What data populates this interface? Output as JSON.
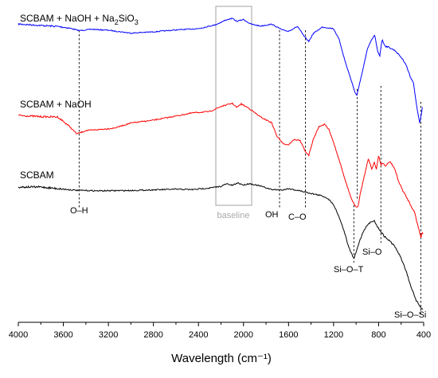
{
  "chart_data": {
    "type": "line",
    "xlabel": "Wavelength (cm⁻¹)",
    "ylabel": "",
    "xlim": [
      4000,
      400
    ],
    "x_reversed": true,
    "x_ticks": [
      "4000",
      "3600",
      "3200",
      "2800",
      "2400",
      "2000",
      "1600",
      "1200",
      "800",
      "400"
    ],
    "x_tick_values": [
      4000,
      3600,
      3200,
      2800,
      2400,
      2000,
      1600,
      1200,
      800,
      400
    ],
    "y_axis_shown": false,
    "grid": false,
    "legend": "none",
    "series": [
      {
        "name": "SCBAM + NaOH + Na₂SiO₃",
        "color": "#0000ff",
        "noise": 1.2,
        "points": [
          [
            4000,
            0.55
          ],
          [
            3800,
            1.0
          ],
          [
            3650,
            1.3
          ],
          [
            3550,
            1.8
          ],
          [
            3460,
            2.6
          ],
          [
            3350,
            2.2
          ],
          [
            3200,
            2.5
          ],
          [
            3000,
            3.4
          ],
          [
            2800,
            3.0
          ],
          [
            2600,
            2.4
          ],
          [
            2400,
            2.0
          ],
          [
            2250,
            0.8
          ],
          [
            2150,
            -0.8
          ],
          [
            2100,
            -1.2
          ],
          [
            2060,
            -0.3
          ],
          [
            2000,
            -0.9
          ],
          [
            1940,
            0.5
          ],
          [
            1850,
            1.2
          ],
          [
            1750,
            0.6
          ],
          [
            1650,
            2.5
          ],
          [
            1600,
            2.8
          ],
          [
            1520,
            1.3
          ],
          [
            1460,
            4.5
          ],
          [
            1420,
            6.0
          ],
          [
            1380,
            3.5
          ],
          [
            1300,
            1.5
          ],
          [
            1200,
            2.0
          ],
          [
            1150,
            5.5
          ],
          [
            1100,
            12.0
          ],
          [
            1050,
            17.5
          ],
          [
            1010,
            22.0
          ],
          [
            995,
            23.0
          ],
          [
            960,
            18.0
          ],
          [
            900,
            8.5
          ],
          [
            870,
            6.0
          ],
          [
            835,
            4.0
          ],
          [
            810,
            9.0
          ],
          [
            790,
            10.5
          ],
          [
            770,
            5.5
          ],
          [
            740,
            7.5
          ],
          [
            700,
            8.0
          ],
          [
            650,
            9.0
          ],
          [
            600,
            11.0
          ],
          [
            560,
            13.0
          ],
          [
            520,
            17.0
          ],
          [
            490,
            19.0
          ],
          [
            470,
            24.5
          ],
          [
            450,
            29.0
          ],
          [
            435,
            31.5
          ],
          [
            420,
            29.0
          ],
          [
            410,
            26.0
          ]
        ]
      },
      {
        "name": "SCBAM + NaOH",
        "color": "#ff0000",
        "noise": 1.4,
        "points": [
          [
            4000,
            0.0
          ],
          [
            3800,
            0.4
          ],
          [
            3650,
            0.5
          ],
          [
            3560,
            3.0
          ],
          [
            3480,
            5.8
          ],
          [
            3400,
            4.8
          ],
          [
            3300,
            4.5
          ],
          [
            3150,
            4.0
          ],
          [
            3000,
            2.4
          ],
          [
            2800,
            1.5
          ],
          [
            2600,
            0.2
          ],
          [
            2450,
            -0.8
          ],
          [
            2300,
            -1.2
          ],
          [
            2200,
            -2.8
          ],
          [
            2100,
            -3.8
          ],
          [
            2060,
            -2.5
          ],
          [
            2020,
            -3.6
          ],
          [
            1950,
            -2.2
          ],
          [
            1850,
            0.5
          ],
          [
            1750,
            2.3
          ],
          [
            1700,
            6.8
          ],
          [
            1640,
            9.0
          ],
          [
            1600,
            9.2
          ],
          [
            1550,
            7.6
          ],
          [
            1500,
            7.8
          ],
          [
            1440,
            12.0
          ],
          [
            1420,
            12.5
          ],
          [
            1380,
            7.5
          ],
          [
            1330,
            3.5
          ],
          [
            1280,
            2.8
          ],
          [
            1240,
            4.5
          ],
          [
            1200,
            8.5
          ],
          [
            1150,
            14.0
          ],
          [
            1100,
            20.0
          ],
          [
            1050,
            25.5
          ],
          [
            1010,
            28.5
          ],
          [
            985,
            28.8
          ],
          [
            960,
            24.0
          ],
          [
            920,
            18.0
          ],
          [
            890,
            13.5
          ],
          [
            860,
            17.0
          ],
          [
            840,
            14.5
          ],
          [
            820,
            17.0
          ],
          [
            800,
            12.5
          ],
          [
            780,
            15.5
          ],
          [
            760,
            15.0
          ],
          [
            740,
            16.0
          ],
          [
            700,
            14.5
          ],
          [
            660,
            16.5
          ],
          [
            620,
            21.0
          ],
          [
            580,
            24.0
          ],
          [
            540,
            26.5
          ],
          [
            510,
            28.5
          ],
          [
            480,
            30.5
          ],
          [
            460,
            33.5
          ],
          [
            440,
            36.0
          ],
          [
            425,
            38.5
          ],
          [
            415,
            36.5
          ],
          [
            405,
            37.5
          ]
        ]
      },
      {
        "name": "SCBAM",
        "color": "#000000",
        "noise": 1.5,
        "points": [
          [
            4000,
            0.0
          ],
          [
            3800,
            0.0
          ],
          [
            3650,
            0.5
          ],
          [
            3500,
            1.0
          ],
          [
            3300,
            1.2
          ],
          [
            3000,
            1.1
          ],
          [
            2800,
            0.9
          ],
          [
            2600,
            0.7
          ],
          [
            2450,
            0.8
          ],
          [
            2300,
            0.3
          ],
          [
            2200,
            -0.2
          ],
          [
            2150,
            -1.0
          ],
          [
            2100,
            -0.5
          ],
          [
            2050,
            -1.3
          ],
          [
            2000,
            -0.6
          ],
          [
            1950,
            -1.1
          ],
          [
            1850,
            -0.3
          ],
          [
            1750,
            0.8
          ],
          [
            1650,
            0.9
          ],
          [
            1600,
            0.5
          ],
          [
            1500,
            1.2
          ],
          [
            1400,
            2.0
          ],
          [
            1300,
            2.8
          ],
          [
            1250,
            3.6
          ],
          [
            1200,
            5.5
          ],
          [
            1150,
            9.5
          ],
          [
            1100,
            14.5
          ],
          [
            1070,
            18.5
          ],
          [
            1040,
            21.0
          ],
          [
            1020,
            22.5
          ],
          [
            1000,
            20.5
          ],
          [
            970,
            17.0
          ],
          [
            930,
            13.5
          ],
          [
            900,
            12.0
          ],
          [
            870,
            11.0
          ],
          [
            840,
            10.5
          ],
          [
            810,
            12.5
          ],
          [
            780,
            14.0
          ],
          [
            750,
            15.5
          ],
          [
            700,
            17.0
          ],
          [
            660,
            18.5
          ],
          [
            620,
            21.0
          ],
          [
            580,
            24.0
          ],
          [
            550,
            27.0
          ],
          [
            520,
            30.5
          ],
          [
            490,
            33.5
          ],
          [
            470,
            35.5
          ],
          [
            450,
            36.5
          ],
          [
            430,
            37.5
          ],
          [
            415,
            38.5
          ],
          [
            405,
            38.0
          ]
        ]
      }
    ],
    "series_labels": [
      {
        "parts": [
          "SCBAM + NaOH + Na",
          "2",
          "SiO",
          "3"
        ]
      },
      {
        "parts": [
          "SCBAM + NaOH"
        ]
      },
      {
        "parts": [
          "SCBAM"
        ]
      }
    ],
    "annotations": [
      {
        "label": "O–H",
        "x": 3460
      },
      {
        "label": "OH",
        "x": 1650
      },
      {
        "label": "C–O",
        "x": 1440
      },
      {
        "label": "Si–O",
        "x": 790
      },
      {
        "label": "Si–O–T",
        "x": 1020
      },
      {
        "label": "Si–O–Si",
        "x": 425
      }
    ],
    "baseline_region": {
      "label": "baseline",
      "x_from": 2200,
      "x_to": 1920
    }
  }
}
